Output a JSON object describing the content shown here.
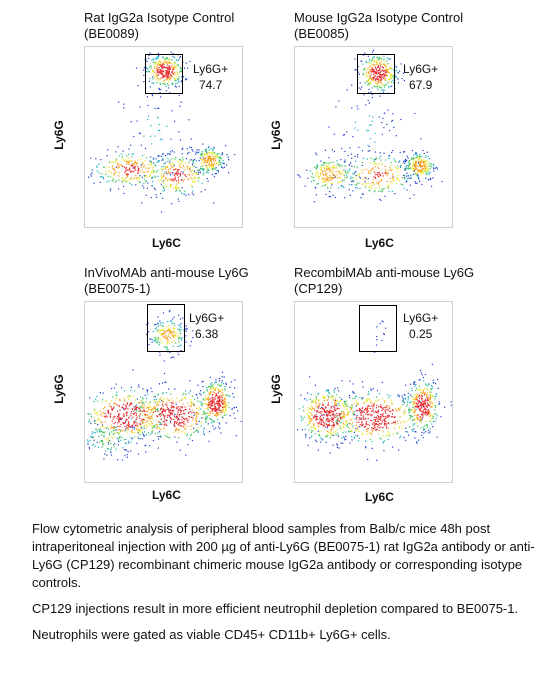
{
  "chart_data": [
    {
      "type": "scatter",
      "title": [
        "Rat IgG2a Isotype Control",
        "(BE0089)"
      ],
      "xlabel": "Ly6C",
      "ylabel": "Ly6G",
      "gate": {
        "name": "Ly6G+",
        "value": "74.7"
      },
      "populations": [
        {
          "name": "",
          "cx": 0.28,
          "cy": 0.33,
          "sx": 0.12,
          "sy": 0.05,
          "n": 260
        },
        {
          "name": "",
          "cx": 0.58,
          "cy": 0.3,
          "sx": 0.1,
          "sy": 0.06,
          "n": 260
        },
        {
          "name": "",
          "cx": 0.78,
          "cy": 0.38,
          "sx": 0.05,
          "sy": 0.04,
          "n": 220
        },
        {
          "name": "",
          "cx": 0.5,
          "cy": 0.87,
          "sx": 0.06,
          "sy": 0.045,
          "n": 330
        },
        {
          "name": "",
          "cx": 0.45,
          "cy": 0.55,
          "sx": 0.12,
          "sy": 0.12,
          "n": 60
        }
      ]
    },
    {
      "type": "scatter",
      "title": [
        "Mouse IgG2a Isotype Control",
        "(BE0085)"
      ],
      "xlabel": "Ly6C",
      "ylabel": "Ly6G",
      "gate": {
        "name": "Ly6G+",
        "value": "67.9"
      },
      "populations": [
        {
          "name": "",
          "cx": 0.22,
          "cy": 0.3,
          "sx": 0.08,
          "sy": 0.05,
          "n": 220
        },
        {
          "name": "",
          "cx": 0.52,
          "cy": 0.3,
          "sx": 0.12,
          "sy": 0.06,
          "n": 240
        },
        {
          "name": "",
          "cx": 0.78,
          "cy": 0.35,
          "sx": 0.05,
          "sy": 0.04,
          "n": 220
        },
        {
          "name": "",
          "cx": 0.52,
          "cy": 0.86,
          "sx": 0.06,
          "sy": 0.05,
          "n": 320
        },
        {
          "name": "",
          "cx": 0.45,
          "cy": 0.55,
          "sx": 0.12,
          "sy": 0.12,
          "n": 60
        }
      ]
    },
    {
      "type": "scatter",
      "title": [
        "InVivoMAb anti-mouse Ly6G",
        "(BE0075-1)"
      ],
      "xlabel": "Ly6C",
      "ylabel": "Ly6G",
      "gate": {
        "name": "Ly6G+",
        "value": "6.38"
      },
      "populations": [
        {
          "name": "",
          "cx": 0.25,
          "cy": 0.38,
          "sx": 0.13,
          "sy": 0.07,
          "n": 420
        },
        {
          "name": "",
          "cx": 0.55,
          "cy": 0.38,
          "sx": 0.13,
          "sy": 0.07,
          "n": 420
        },
        {
          "name": "",
          "cx": 0.82,
          "cy": 0.45,
          "sx": 0.05,
          "sy": 0.06,
          "n": 340
        },
        {
          "name": "",
          "cx": 0.52,
          "cy": 0.82,
          "sx": 0.06,
          "sy": 0.05,
          "n": 200
        },
        {
          "name": "",
          "cx": 0.15,
          "cy": 0.25,
          "sx": 0.1,
          "sy": 0.05,
          "n": 120
        }
      ]
    },
    {
      "type": "scatter",
      "title": [
        "RecombiMAb anti-mouse Ly6G",
        "(CP129)"
      ],
      "xlabel": "Ly6C",
      "ylabel": "Ly6G",
      "gate": {
        "name": "Ly6G+",
        "value": "0.25"
      },
      "populations": [
        {
          "name": "",
          "cx": 0.2,
          "cy": 0.38,
          "sx": 0.09,
          "sy": 0.07,
          "n": 420
        },
        {
          "name": "",
          "cx": 0.5,
          "cy": 0.37,
          "sx": 0.14,
          "sy": 0.07,
          "n": 460
        },
        {
          "name": "",
          "cx": 0.8,
          "cy": 0.43,
          "sx": 0.05,
          "sy": 0.07,
          "n": 340
        },
        {
          "name": "",
          "cx": 0.53,
          "cy": 0.82,
          "sx": 0.02,
          "sy": 0.05,
          "n": 12
        }
      ]
    }
  ],
  "caption": [
    "Flow cytometric analysis of peripheral blood samples from Balb/c mice 48h post intraperitoneal injection with 200 µg of anti-Ly6G (BE0075-1) rat IgG2a antibody or anti-Ly6G (CP129) recombinant chimeric mouse IgG2a antibody or corresponding isotype controls.",
    "CP129 injections result in more efficient neutrophil depletion compared to BE0075-1.",
    "Neutrophils were gated as viable CD45+ CD11b+ Ly6G+ cells."
  ]
}
